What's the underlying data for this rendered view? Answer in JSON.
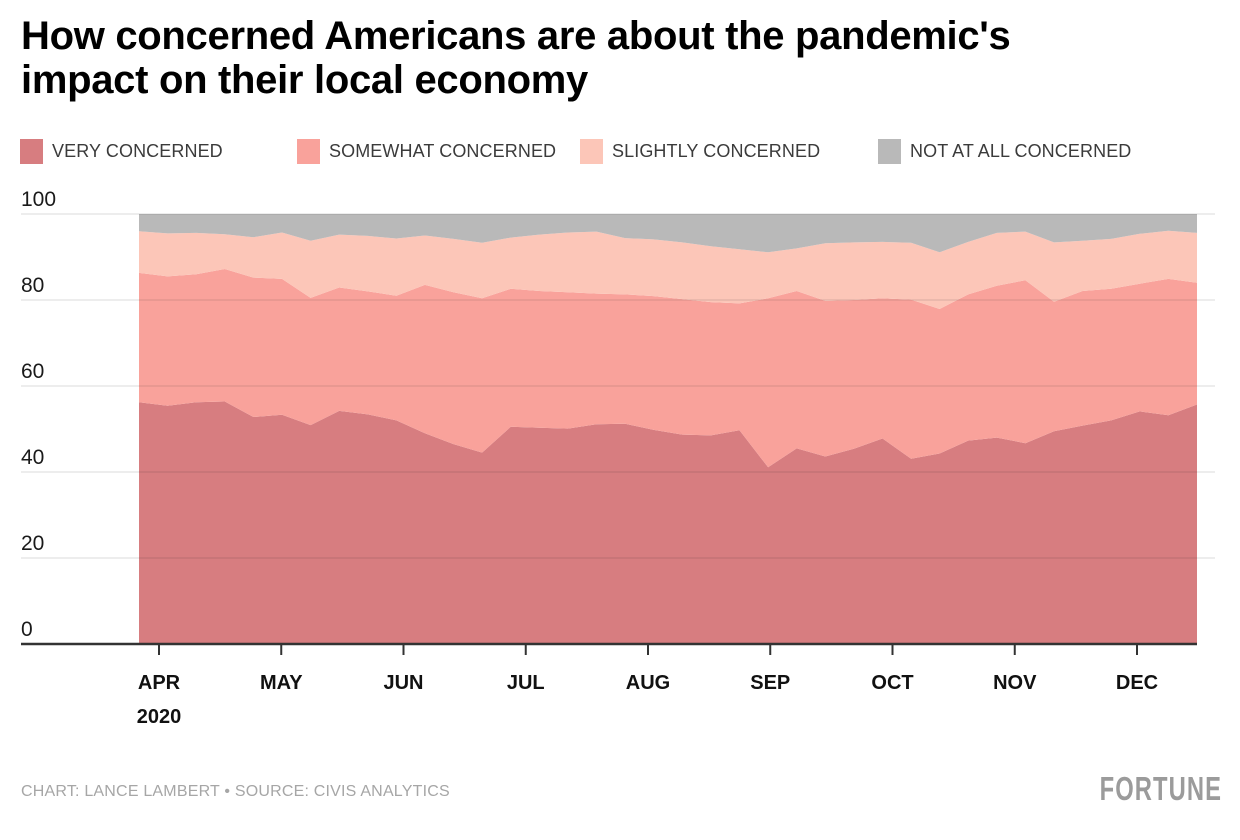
{
  "title": {
    "line1": "How concerned Americans are about the pandemic's",
    "line2": "impact on their local economy"
  },
  "chart_data": {
    "type": "area",
    "stacked": true,
    "normalized_total": 100,
    "title": "How concerned Americans are about the pandemic's impact on their local economy",
    "xlabel": "",
    "ylabel": "",
    "ylim": [
      0,
      100
    ],
    "y_ticks": [
      0,
      20,
      40,
      60,
      80,
      100
    ],
    "x_tick_labels": [
      "APR",
      "MAY",
      "JUN",
      "JUL",
      "AUG",
      "SEP",
      "OCT",
      "NOV",
      "DEC"
    ],
    "x_tick_sublabel": "2020",
    "grid": true,
    "legend_position": "top",
    "x_dates": [
      "Mar 29",
      "Apr 5",
      "Apr 12",
      "Apr 19",
      "Apr 26",
      "May 3",
      "May 10",
      "May 17",
      "May 24",
      "May 31",
      "Jun 7",
      "Jun 14",
      "Jun 21",
      "Jun 28",
      "Jul 5",
      "Jul 12",
      "Jul 19",
      "Jul 26",
      "Aug 2",
      "Aug 9",
      "Aug 16",
      "Aug 23",
      "Aug 30",
      "Sep 6",
      "Sep 13",
      "Sep 20",
      "Sep 27",
      "Oct 4",
      "Oct 11",
      "Oct 18",
      "Oct 25",
      "Nov 1",
      "Nov 8",
      "Nov 15",
      "Nov 22",
      "Nov 29",
      "Dec 6",
      "Dec 13"
    ],
    "series": [
      {
        "name": "VERY CONCERNED",
        "color": "#d77d80",
        "values": [
          56.2,
          55.4,
          56.2,
          56.4,
          52.8,
          53.3,
          50.9,
          54.2,
          53.4,
          52.0,
          49.0,
          46.5,
          44.5,
          50.5,
          50.3,
          50.1,
          51.1,
          51.2,
          49.8,
          48.7,
          48.5,
          49.7,
          41.1,
          45.5,
          43.6,
          45.4,
          47.8,
          43.1,
          44.3,
          47.3,
          48.0,
          46.7,
          49.5,
          50.8,
          52.0,
          54.1,
          53.2,
          55.7
        ]
      },
      {
        "name": "SOMEWHAT CONCERNED",
        "color": "#f9a29b",
        "values": [
          30.1,
          30.1,
          29.8,
          30.8,
          32.4,
          31.6,
          29.6,
          28.7,
          28.6,
          29.0,
          34.5,
          35.3,
          35.9,
          32.1,
          31.8,
          31.7,
          30.4,
          30.1,
          31.1,
          31.5,
          31.0,
          29.5,
          39.3,
          36.6,
          36.2,
          34.6,
          32.6,
          37.0,
          33.6,
          34.0,
          35.3,
          37.9,
          30.1,
          31.3,
          30.6,
          29.7,
          31.7,
          28.3
        ]
      },
      {
        "name": "SLIGHTLY CONCERNED",
        "color": "#fcc6b8",
        "values": [
          9.7,
          10.0,
          9.6,
          8.1,
          9.4,
          10.8,
          13.3,
          12.3,
          12.9,
          13.3,
          11.5,
          12.4,
          12.9,
          11.9,
          13.1,
          13.9,
          14.4,
          13.1,
          13.2,
          13.2,
          13.0,
          12.6,
          10.7,
          9.9,
          13.4,
          13.4,
          13.1,
          13.2,
          13.2,
          12.2,
          12.3,
          11.3,
          13.8,
          11.7,
          11.6,
          11.6,
          11.2,
          11.6
        ]
      },
      {
        "name": "NOT AT ALL CONCERNED",
        "color": "#b9b9b9",
        "values": [
          4.0,
          4.5,
          4.4,
          4.7,
          5.4,
          4.3,
          6.2,
          4.8,
          5.1,
          5.7,
          5.0,
          5.8,
          6.7,
          5.5,
          4.8,
          4.3,
          4.1,
          5.6,
          5.9,
          6.6,
          7.5,
          8.2,
          8.9,
          8.0,
          6.8,
          6.6,
          6.5,
          6.7,
          8.9,
          6.5,
          4.4,
          4.1,
          6.6,
          6.2,
          5.8,
          4.6,
          3.9,
          4.4
        ]
      }
    ]
  },
  "footer": {
    "credit": "CHART: LANCE LAMBERT • SOURCE: CIVIS ANALYTICS",
    "brand": "FORTUNE"
  }
}
